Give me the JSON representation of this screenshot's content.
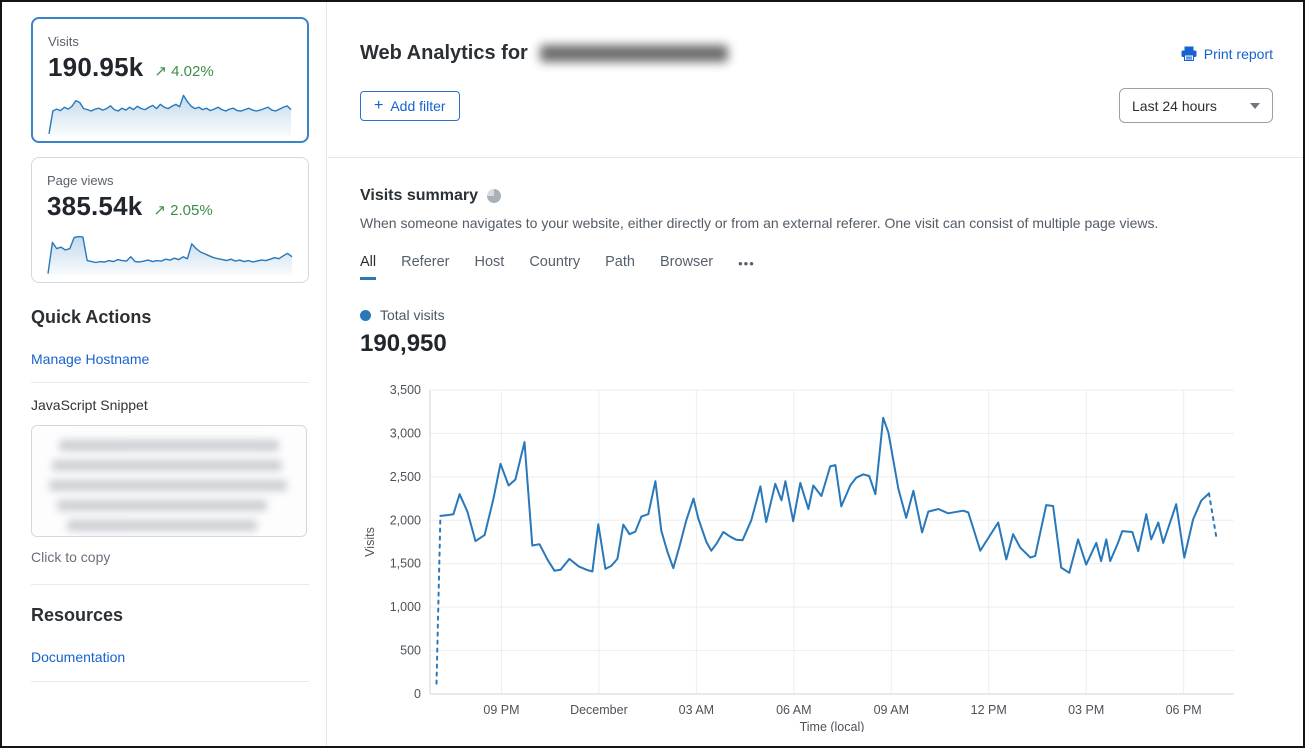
{
  "colors": {
    "accent_blue": "#2878ba",
    "link_blue": "#1662d1",
    "delta_green": "#3e8e4a",
    "selected_card_border": "#3b82c8",
    "grid_gray": "#eceef0",
    "axis_gray": "#d0d4d8",
    "text_gray": "#56606b"
  },
  "sidebar": {
    "cards": [
      {
        "label": "Visits",
        "value": "190.95k",
        "delta_arrow": "↗",
        "delta": "4.02%",
        "selected": true,
        "sparkline": [
          4,
          52,
          56,
          53,
          60,
          56,
          62,
          74,
          70,
          57,
          55,
          52,
          56,
          58,
          54,
          57,
          63,
          55,
          52,
          58,
          54,
          60,
          55,
          62,
          57,
          55,
          60,
          64,
          57,
          66,
          60,
          57,
          62,
          66,
          61,
          85,
          72,
          62,
          57,
          60,
          55,
          58,
          53,
          56,
          60,
          55,
          52,
          56,
          58,
          53,
          52,
          55,
          58,
          54,
          52,
          54,
          57,
          60,
          54,
          52,
          56,
          60,
          63,
          55
        ]
      },
      {
        "label": "Page views",
        "value": "385.54k",
        "delta_arrow": "↗",
        "delta": "2.05%",
        "selected": false,
        "sparkline": [
          3,
          68,
          55,
          58,
          52,
          55,
          78,
          80,
          79,
          30,
          28,
          26,
          28,
          27,
          30,
          28,
          32,
          30,
          29,
          38,
          28,
          27,
          29,
          31,
          28,
          30,
          29,
          33,
          31,
          35,
          32,
          38,
          34,
          65,
          55,
          48,
          44,
          40,
          36,
          34,
          32,
          30,
          33,
          29,
          31,
          28,
          30,
          27,
          29,
          31,
          30,
          33,
          36,
          34,
          40,
          45,
          38
        ]
      }
    ],
    "quick_actions": {
      "title": "Quick Actions",
      "manage_hostname_label": "Manage Hostname",
      "snippet_label": "JavaScript Snippet",
      "snippet_redacted": true,
      "copy_hint": "Click to copy"
    },
    "resources": {
      "title": "Resources",
      "documentation_label": "Documentation"
    }
  },
  "header": {
    "title": "Web Analytics for",
    "domain_redacted": true,
    "print_label": "Print report",
    "add_filter": {
      "icon": "+",
      "label": "Add filter"
    },
    "time_range_value": "Last 24 hours"
  },
  "summary": {
    "title": "Visits summary",
    "description": "When someone navigates to your website, either directly or from an external referer. One visit can consist of multiple page views.",
    "tabs": [
      "All",
      "Referer",
      "Host",
      "Country",
      "Path",
      "Browser"
    ],
    "active_tab": "All",
    "more_tabs": "•••",
    "legend_label": "Total visits",
    "total_value": "190,950"
  },
  "chart_data": {
    "type": "line",
    "title": "Visits summary",
    "series_name": "Total visits",
    "xlabel": "Time (local)",
    "ylabel": "Visits",
    "ylim": [
      0,
      3500
    ],
    "y_tick_step": 500,
    "grid": true,
    "line_color": "#2878ba",
    "x_unit": "hours since 7 PM previous day",
    "x_domain_hours": [
      -0.2,
      24.55
    ],
    "x_ticks": [
      {
        "h": 2,
        "label": "09 PM"
      },
      {
        "h": 5,
        "label": "December"
      },
      {
        "h": 8,
        "label": "03 AM"
      },
      {
        "h": 11,
        "label": "06 AM"
      },
      {
        "h": 14,
        "label": "09 AM"
      },
      {
        "h": 17,
        "label": "12 PM"
      },
      {
        "h": 20,
        "label": "03 PM"
      },
      {
        "h": 23,
        "label": "06 PM"
      }
    ],
    "dashed_head_points": 2,
    "dashed_tail_points": 2,
    "points": [
      [
        0,
        120
      ],
      [
        0.12,
        2050
      ],
      [
        0.34,
        2060
      ],
      [
        0.52,
        2070
      ],
      [
        0.71,
        2300
      ],
      [
        0.95,
        2100
      ],
      [
        1.2,
        1760
      ],
      [
        1.48,
        1830
      ],
      [
        1.75,
        2240
      ],
      [
        1.97,
        2650
      ],
      [
        2.22,
        2400
      ],
      [
        2.43,
        2470
      ],
      [
        2.71,
        2900
      ],
      [
        2.95,
        1710
      ],
      [
        3.17,
        1725
      ],
      [
        3.42,
        1545
      ],
      [
        3.63,
        1420
      ],
      [
        3.82,
        1430
      ],
      [
        4.09,
        1555
      ],
      [
        4.37,
        1470
      ],
      [
        4.62,
        1430
      ],
      [
        4.8,
        1410
      ],
      [
        4.98,
        1955
      ],
      [
        5.2,
        1440
      ],
      [
        5.38,
        1475
      ],
      [
        5.57,
        1555
      ],
      [
        5.75,
        1950
      ],
      [
        5.94,
        1840
      ],
      [
        6.12,
        1870
      ],
      [
        6.31,
        2045
      ],
      [
        6.52,
        2070
      ],
      [
        6.74,
        2450
      ],
      [
        6.92,
        1880
      ],
      [
        7.11,
        1635
      ],
      [
        7.29,
        1450
      ],
      [
        7.48,
        1700
      ],
      [
        7.69,
        2000
      ],
      [
        7.91,
        2250
      ],
      [
        8.06,
        2020
      ],
      [
        8.31,
        1750
      ],
      [
        8.46,
        1650
      ],
      [
        8.62,
        1730
      ],
      [
        8.83,
        1865
      ],
      [
        9.05,
        1810
      ],
      [
        9.23,
        1775
      ],
      [
        9.42,
        1770
      ],
      [
        9.69,
        2000
      ],
      [
        9.97,
        2390
      ],
      [
        10.15,
        1980
      ],
      [
        10.43,
        2420
      ],
      [
        10.62,
        2230
      ],
      [
        10.74,
        2450
      ],
      [
        10.98,
        1990
      ],
      [
        11.2,
        2430
      ],
      [
        11.45,
        2130
      ],
      [
        11.6,
        2400
      ],
      [
        11.85,
        2280
      ],
      [
        12.12,
        2620
      ],
      [
        12.28,
        2635
      ],
      [
        12.46,
        2160
      ],
      [
        12.74,
        2405
      ],
      [
        12.92,
        2490
      ],
      [
        13.14,
        2530
      ],
      [
        13.32,
        2510
      ],
      [
        13.51,
        2300
      ],
      [
        13.75,
        3180
      ],
      [
        13.91,
        3010
      ],
      [
        14.22,
        2360
      ],
      [
        14.46,
        2030
      ],
      [
        14.68,
        2340
      ],
      [
        14.95,
        1860
      ],
      [
        15.14,
        2100
      ],
      [
        15.45,
        2130
      ],
      [
        15.75,
        2080
      ],
      [
        16.22,
        2110
      ],
      [
        16.37,
        2090
      ],
      [
        16.74,
        1650
      ],
      [
        16.89,
        1740
      ],
      [
        17.29,
        1975
      ],
      [
        17.54,
        1550
      ],
      [
        17.75,
        1840
      ],
      [
        17.97,
        1685
      ],
      [
        18.28,
        1570
      ],
      [
        18.43,
        1590
      ],
      [
        18.77,
        2175
      ],
      [
        18.98,
        2165
      ],
      [
        19.23,
        1455
      ],
      [
        19.48,
        1395
      ],
      [
        19.75,
        1780
      ],
      [
        20,
        1490
      ],
      [
        20.31,
        1740
      ],
      [
        20.46,
        1530
      ],
      [
        20.62,
        1780
      ],
      [
        20.74,
        1530
      ],
      [
        20.98,
        1740
      ],
      [
        21.11,
        1875
      ],
      [
        21.42,
        1865
      ],
      [
        21.6,
        1645
      ],
      [
        21.85,
        2070
      ],
      [
        22,
        1780
      ],
      [
        22.22,
        1975
      ],
      [
        22.37,
        1740
      ],
      [
        22.77,
        2185
      ],
      [
        23.02,
        1570
      ],
      [
        23.29,
        2010
      ],
      [
        23.54,
        2225
      ],
      [
        23.78,
        2310
      ],
      [
        24,
        1820
      ]
    ]
  }
}
